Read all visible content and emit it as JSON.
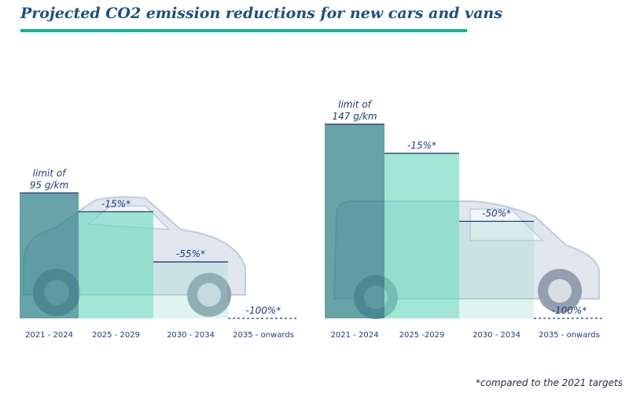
{
  "title": "Projected CO2 emission reductions for new cars and vans",
  "footnote": "*compared to the 2021 targets",
  "colors": {
    "title": "#1d4e86",
    "rule": "#12b597",
    "bar_base": "#2e7f86",
    "bar_mid": "#5fd6b6",
    "bar_light": "#8fd7c6",
    "label": "#1d3e7a",
    "vehicle": "#8ea4c4"
  },
  "chart_data": [
    {
      "type": "bar",
      "panel": "cars",
      "categories": [
        "2021 - 2024",
        "2025 - 2029",
        "2030 - 2034",
        "2035 - onwards"
      ],
      "values": [
        95,
        80.75,
        42.75,
        0
      ],
      "unit": "g/km",
      "bar_labels": [
        "limit of\n95 g/km",
        "-15%*",
        "-55%*",
        "-100%*"
      ],
      "ylim": [
        0,
        150
      ],
      "grid": false,
      "icon": "car-icon"
    },
    {
      "type": "bar",
      "panel": "vans",
      "categories": [
        "2021 - 2024",
        "2025 -2029",
        "2030 - 2034",
        "2035 - onwards"
      ],
      "values": [
        147,
        124.95,
        73.5,
        0
      ],
      "unit": "g/km",
      "bar_labels": [
        "limit of\n147 g/km",
        "-15%*",
        "-50%*",
        "-100%*"
      ],
      "ylim": [
        0,
        150
      ],
      "grid": false,
      "icon": "van-icon"
    }
  ]
}
